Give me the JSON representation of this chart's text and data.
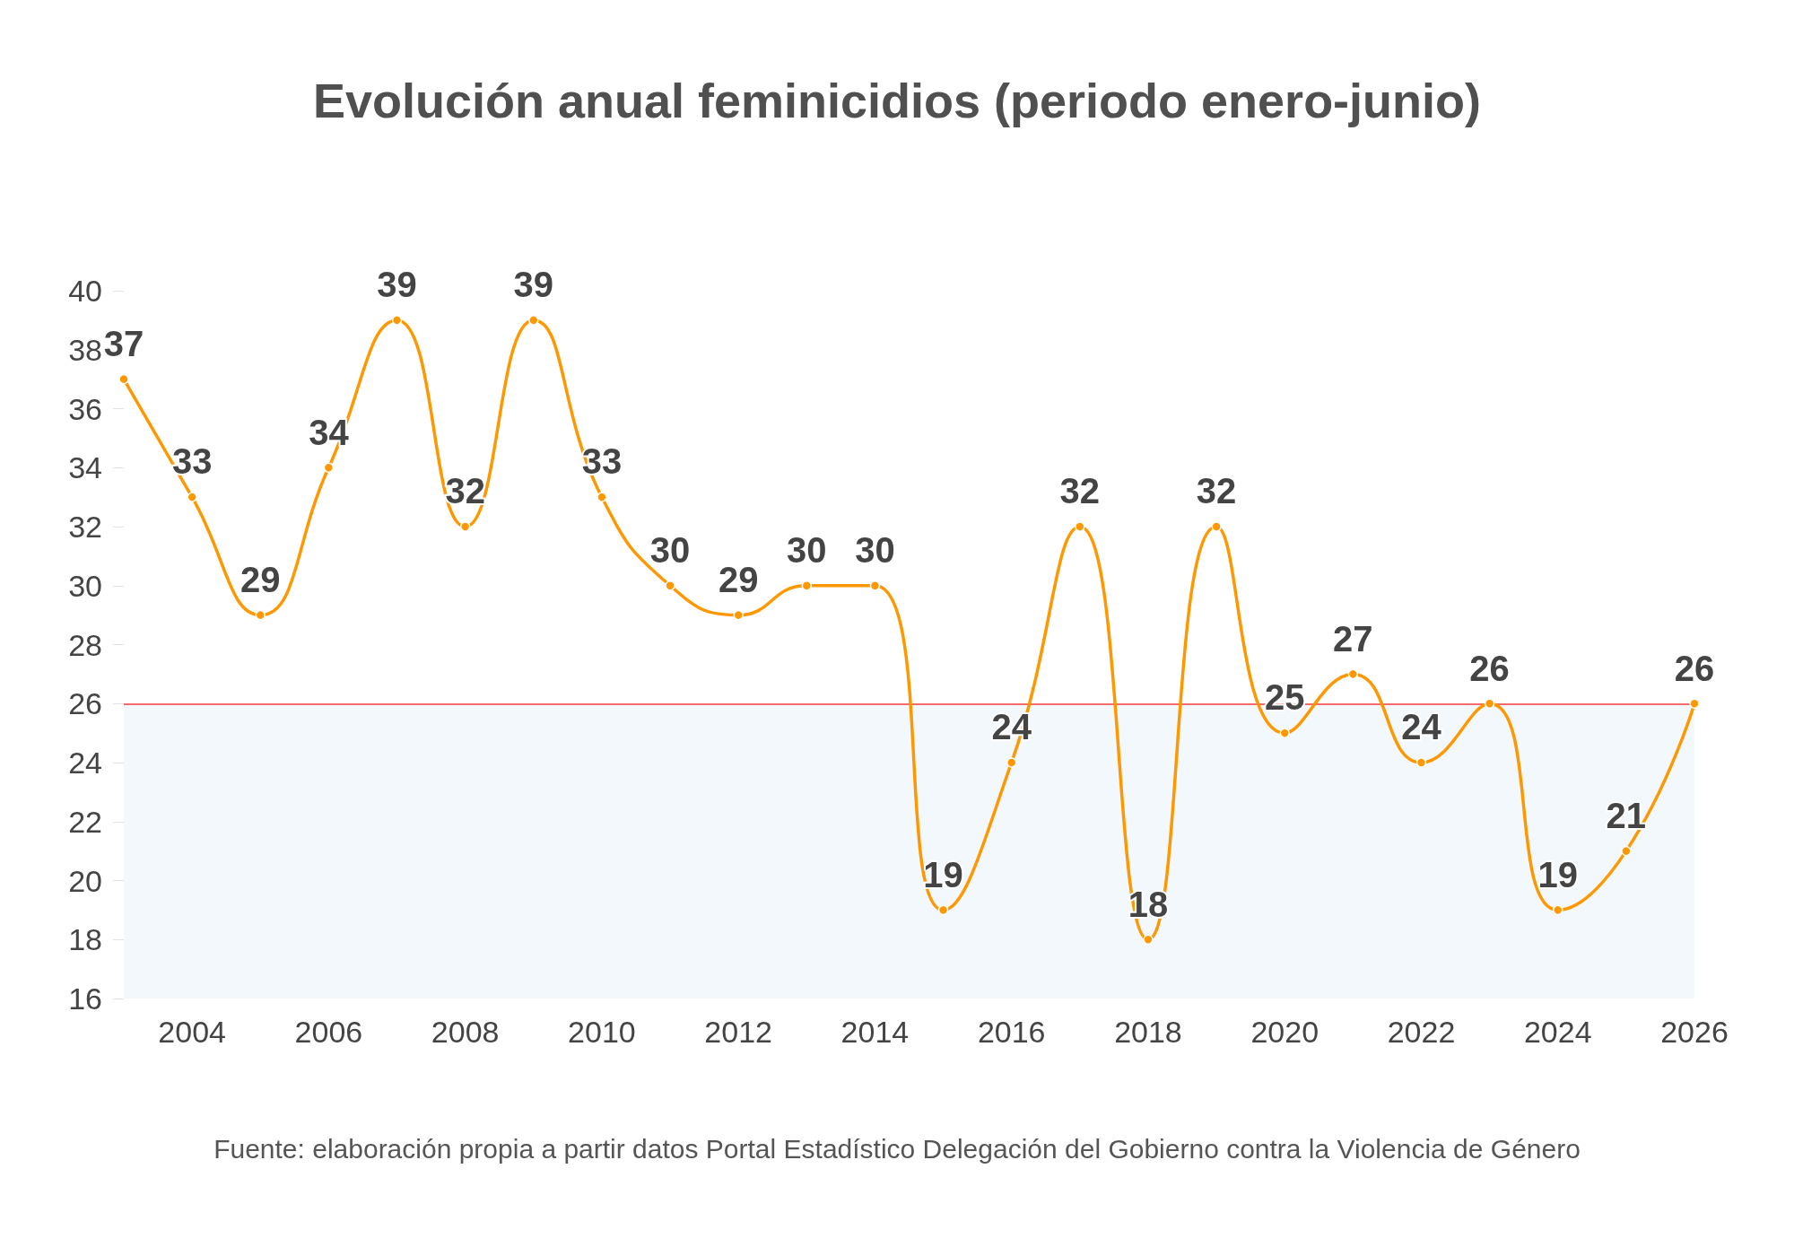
{
  "chart_data": {
    "type": "line",
    "title": "Evolución anual feminicidios (periodo enero-junio)",
    "annotations": [
      "Fuente: elaboración propia a partir datos Portal Estadístico Delegación del Gobierno contra la Violencia de Género"
    ],
    "x": [
      2003,
      2004,
      2005,
      2006,
      2007,
      2008,
      2009,
      2010,
      2011,
      2012,
      2013,
      2014,
      2015,
      2016,
      2017,
      2018,
      2019,
      2020,
      2021,
      2022,
      2023,
      2024,
      2025,
      2026
    ],
    "values": [
      37,
      33,
      29,
      34,
      39,
      32,
      39,
      33,
      30,
      29,
      30,
      30,
      19,
      24,
      32,
      18,
      32,
      25,
      27,
      24,
      26,
      19,
      21,
      26
    ],
    "color": "#ff9800",
    "xlim": [
      2003,
      2026
    ],
    "xticks": [
      2004,
      2006,
      2008,
      2010,
      2012,
      2014,
      2016,
      2018,
      2020,
      2022,
      2024,
      2026
    ],
    "ylim": [
      16,
      40
    ],
    "yticks": [
      16,
      18,
      20,
      22,
      24,
      26,
      28,
      30,
      32,
      34,
      36,
      38,
      40
    ],
    "ref_lines": [
      {
        "axis": "y",
        "value": 26,
        "color": "#f46b6b"
      }
    ],
    "bands": [
      {
        "axis": "y",
        "from": 16,
        "to": 26,
        "color": "#f3f8fd"
      }
    ],
    "data_labels": true,
    "marker": "circle",
    "line_style": "solid"
  }
}
